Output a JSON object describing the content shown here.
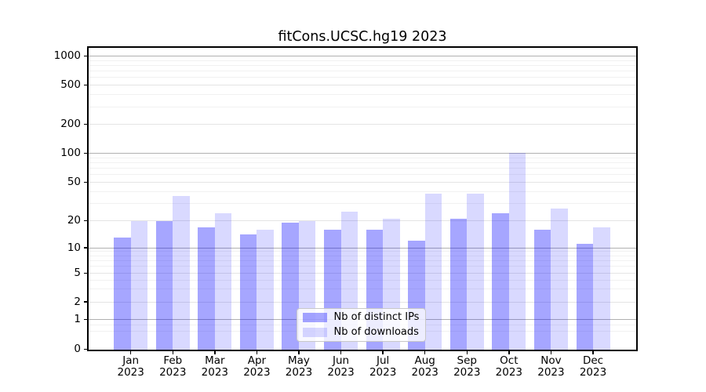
{
  "figure": {
    "background": "#ffffff",
    "text_color": "#000000"
  },
  "chart_data": {
    "type": "bar",
    "title": "fitCons.UCSC.hg19 2023",
    "categories": [
      "Jan",
      "Feb",
      "Mar",
      "Apr",
      "May",
      "Jun",
      "Jul",
      "Aug",
      "Sep",
      "Oct",
      "Nov",
      "Dec"
    ],
    "x_tick_second_line": "2023",
    "series": [
      {
        "name": "Nb of distinct IPs",
        "color": "rgba(0,0,255,0.35)",
        "values": [
          13,
          20,
          17,
          14,
          19,
          16,
          16,
          12,
          21,
          24,
          16,
          11
        ]
      },
      {
        "name": "Nb of downloads",
        "color": "rgba(0,0,255,0.15)",
        "values": [
          20,
          36,
          24,
          16,
          20,
          25,
          21,
          38,
          38,
          102,
          27,
          17
        ]
      }
    ],
    "xlabel": "",
    "ylabel": "",
    "yscale": "symlog",
    "y_ticks": [
      0,
      1,
      2,
      5,
      10,
      20,
      50,
      100,
      200,
      500,
      1000
    ],
    "y_tick_labels": [
      "0",
      "1",
      "2",
      "5",
      "10",
      "20",
      "50",
      "100",
      "200",
      "500",
      "1000"
    ],
    "ylim": [
      0,
      1250
    ],
    "grid": "both",
    "legend_position": "lower center",
    "grid_color_major": "#b0b0b0",
    "grid_color_labeled": "#e4e4e4",
    "grid_color_minor": "#f1f1f1"
  }
}
